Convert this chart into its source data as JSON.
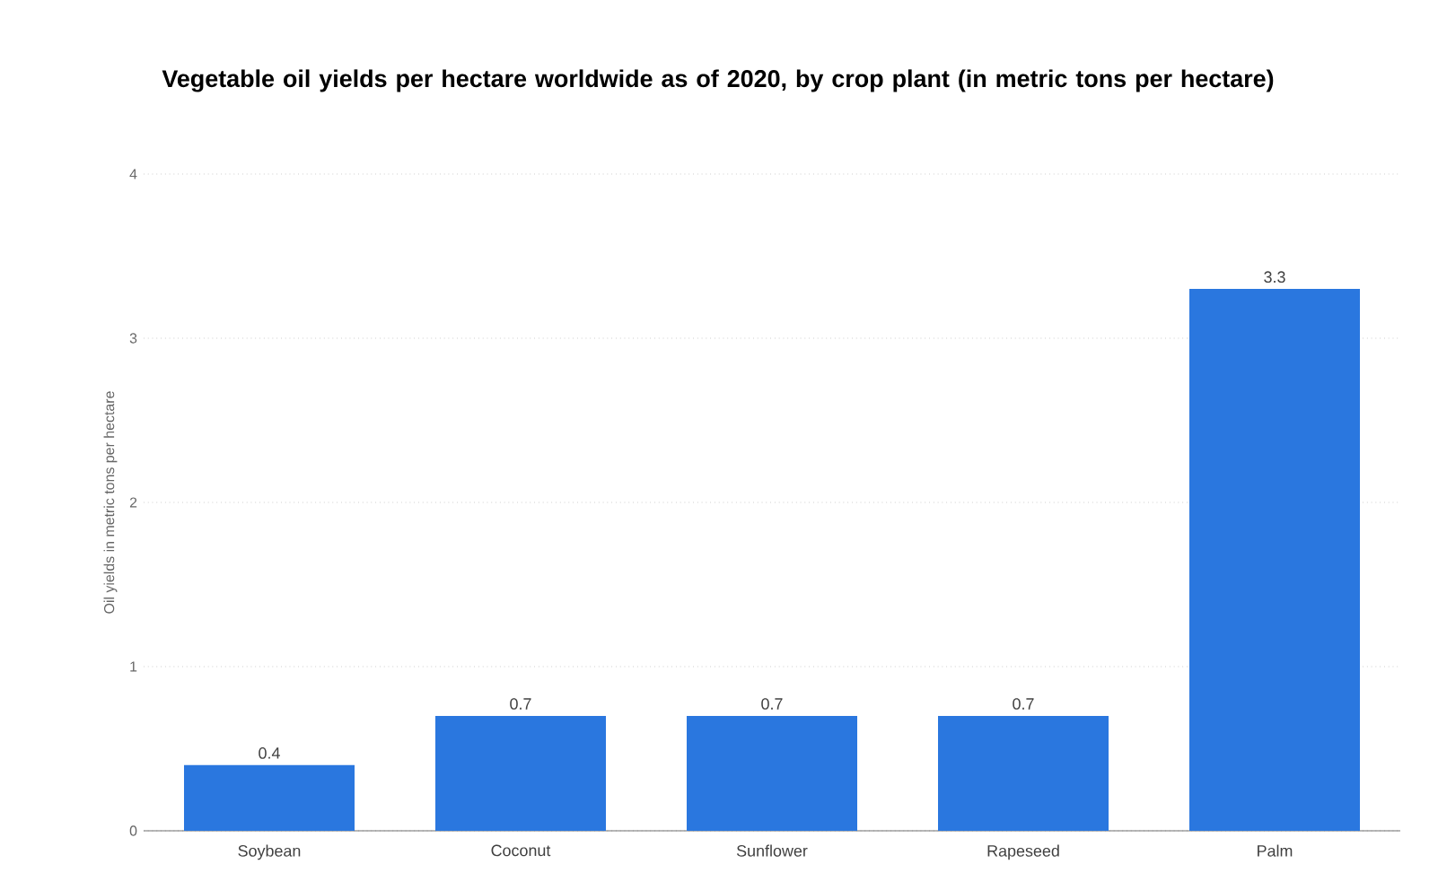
{
  "chart_data": {
    "type": "bar",
    "title": "Vegetable oil yields per hectare worldwide as of 2020, by crop plant (in metric tons per hectare)",
    "ylabel": "Oil yields in metric tons per hectare",
    "categories": [
      "Soybean",
      "Coconut",
      "Sunflower",
      "Rapeseed",
      "Palm"
    ],
    "values": [
      0.4,
      0.7,
      0.7,
      0.7,
      3.3
    ],
    "color": "#2a77df",
    "ylim": [
      0,
      4
    ],
    "yticks": [
      0,
      1,
      2,
      3,
      4
    ],
    "grid": "y",
    "data_labels": true
  }
}
